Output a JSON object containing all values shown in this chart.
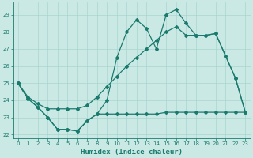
{
  "xlabel": "Humidex (Indice chaleur)",
  "xlim": [
    -0.5,
    23.5
  ],
  "ylim": [
    21.8,
    29.7
  ],
  "yticks": [
    22,
    23,
    24,
    25,
    26,
    27,
    28,
    29
  ],
  "xticks": [
    0,
    1,
    2,
    3,
    4,
    5,
    6,
    7,
    8,
    9,
    10,
    11,
    12,
    13,
    14,
    15,
    16,
    17,
    18,
    19,
    20,
    21,
    22,
    23
  ],
  "bg_color": "#cbe9e4",
  "grid_color": "#a8d5cf",
  "line_color": "#1a7a6e",
  "line1_y": [
    25.0,
    24.1,
    23.6,
    23.0,
    22.3,
    22.3,
    22.2,
    22.8,
    23.2,
    24.0,
    26.5,
    28.0,
    28.7,
    28.2,
    27.0,
    29.0,
    29.3,
    28.5,
    27.8,
    27.8,
    27.9,
    26.6,
    25.3,
    23.3
  ],
  "line2_y": [
    25.0,
    24.1,
    23.6,
    23.0,
    22.3,
    22.3,
    22.2,
    22.8,
    23.2,
    23.2,
    23.2,
    23.2,
    23.2,
    23.2,
    23.2,
    23.3,
    23.3,
    23.3,
    23.3,
    23.3,
    23.3,
    23.3,
    23.3,
    23.3
  ],
  "line3_y": [
    25.0,
    24.2,
    23.8,
    23.5,
    23.5,
    23.5,
    23.5,
    23.7,
    24.2,
    24.8,
    25.4,
    26.0,
    26.5,
    27.0,
    27.5,
    28.0,
    28.3,
    27.8,
    27.8,
    27.8,
    27.9,
    26.6,
    25.3,
    23.3
  ]
}
